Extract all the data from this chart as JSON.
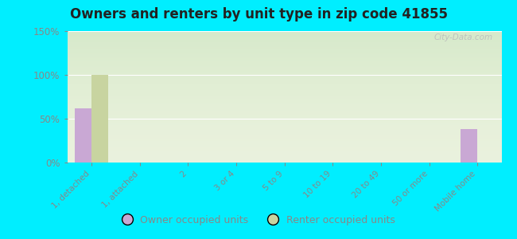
{
  "title": "Owners and renters by unit type in zip code 41855",
  "categories": [
    "1, detached",
    "1, attached",
    "2",
    "3 or 4",
    "5 to 9",
    "10 to 19",
    "20 to 49",
    "50 or more",
    "Mobile home"
  ],
  "owner_values": [
    62,
    0,
    0,
    0,
    0,
    0,
    0,
    0,
    38
  ],
  "renter_values": [
    100,
    0,
    0,
    0,
    0,
    0,
    0,
    0,
    0
  ],
  "owner_color": "#c9a8d4",
  "renter_color": "#c8d4a0",
  "background_outer": "#00eeff",
  "background_plot_top": "#e8f0da",
  "background_plot_bottom": "#f5f8ee",
  "ylim": [
    0,
    150
  ],
  "yticks": [
    0,
    50,
    100,
    150
  ],
  "ytick_labels": [
    "0%",
    "50%",
    "100%",
    "150%"
  ],
  "bar_width": 0.35,
  "legend_owner": "Owner occupied units",
  "legend_renter": "Renter occupied units",
  "watermark": "City-Data.com",
  "axis_label_color": "#888888",
  "grid_color": "#e0e8d0"
}
